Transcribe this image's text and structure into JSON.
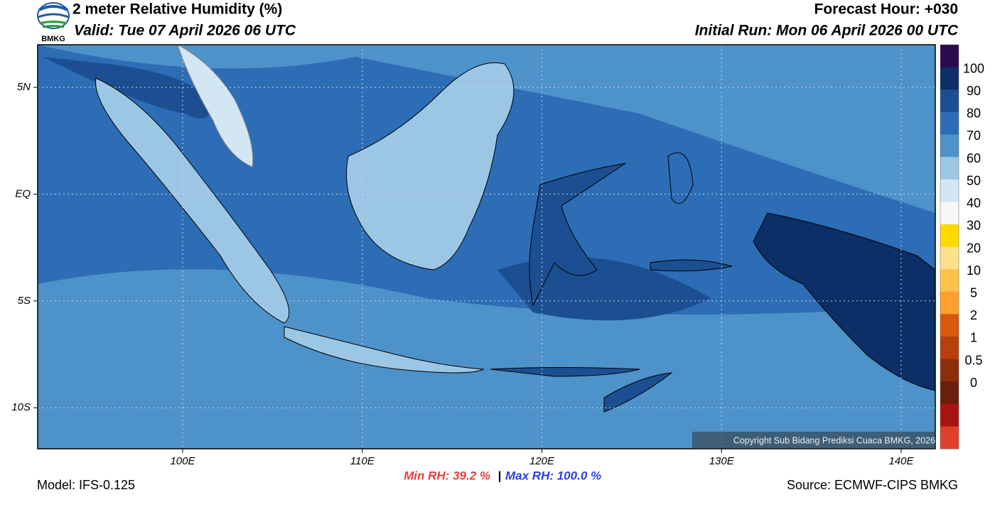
{
  "header": {
    "logo": "BMKG",
    "title": "2 meter Relative Humidity (%)",
    "valid": "Valid: Tue 07 April 2026 06 UTC",
    "forecast_hour": "Forecast Hour: +030",
    "initial_run": "Initial Run: Mon 06 April 2026 00 UTC"
  },
  "map": {
    "lat_labels": [
      "5N",
      "EQ",
      "5S",
      "10S"
    ],
    "lon_labels": [
      "100E",
      "110E",
      "120E",
      "130E",
      "140E"
    ],
    "copyright": "Copyright Sub Bidang Prediksi Cuaca BMKG, 2026"
  },
  "colorbar": {
    "colors": [
      "#2b0a50",
      "#0b2f66",
      "#1c4f92",
      "#2c6db5",
      "#4d92c9",
      "#9cc7e4",
      "#d3e6f3",
      "#f7f7f7",
      "#ffd800",
      "#ffe08a",
      "#ffc24a",
      "#ffa02c",
      "#d95a0c",
      "#b8400a",
      "#8c2e0a",
      "#6a1e0c",
      "#a81414",
      "#e0402a"
    ],
    "labels": [
      "100",
      "90",
      "80",
      "70",
      "60",
      "50",
      "40",
      "30",
      "20",
      "10",
      "5",
      "2",
      "1",
      "0.5",
      "0"
    ]
  },
  "footer": {
    "model": "Model: IFS-0.125",
    "min_rh": "Min RH:  39.2 %",
    "separator": "|",
    "max_rh": "Max RH: 100.0 %",
    "source": "Source: ECMWF-CIPS BMKG"
  }
}
